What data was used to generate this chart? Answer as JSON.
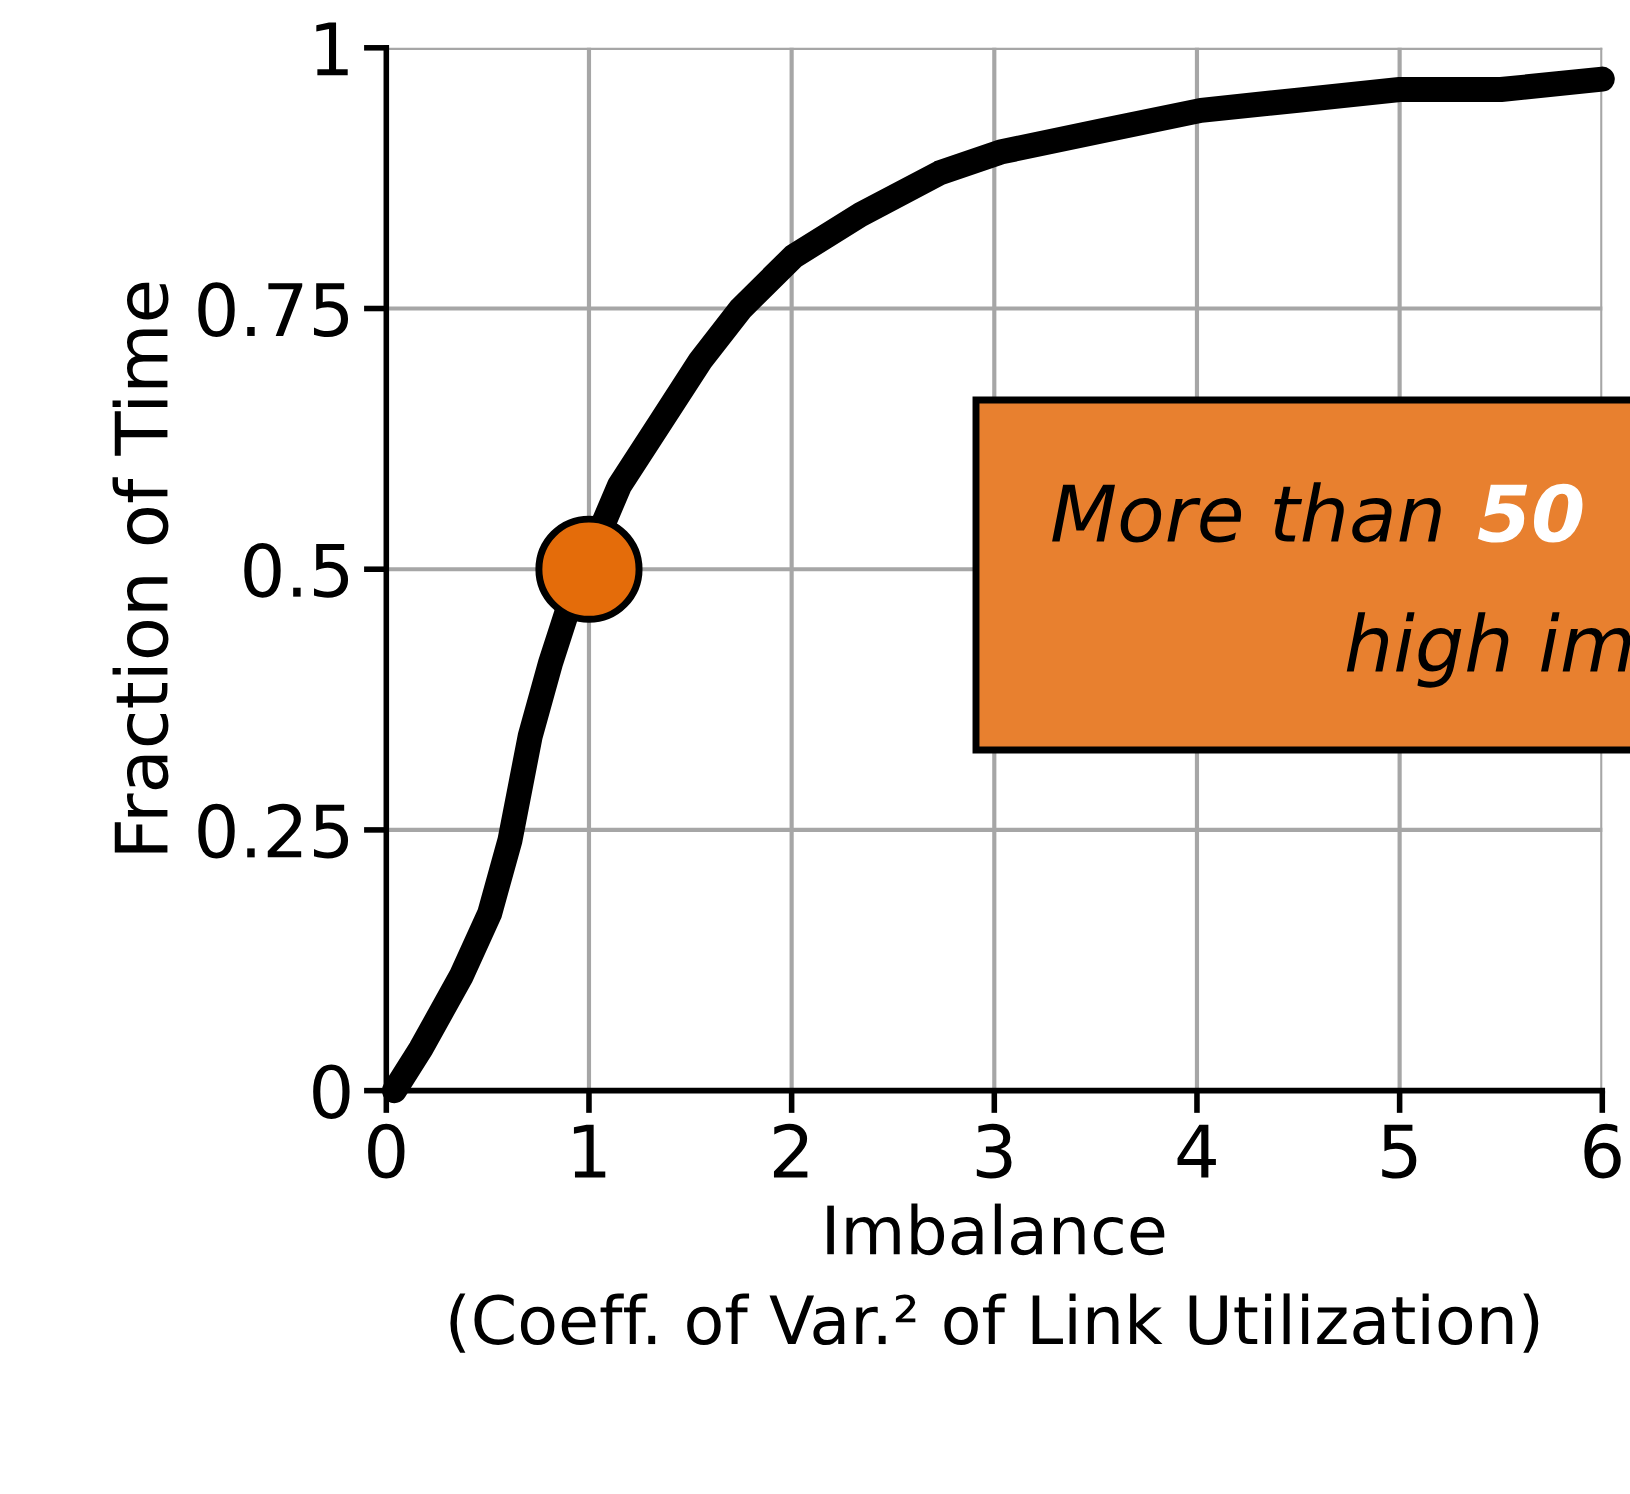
{
  "chart_data": {
    "type": "line",
    "xlabel": "Imbalance\n(Coeff. of Var.² of Link Utilization)",
    "ylabel": "Fraction of Time",
    "xlim": [
      0,
      6
    ],
    "ylim": [
      0,
      1
    ],
    "xticks": [
      0,
      1,
      2,
      3,
      4,
      5,
      6
    ],
    "yticks": [
      0,
      0.25,
      0.5,
      0.75,
      1
    ],
    "grid": true,
    "series": [
      {
        "color": "#000000",
        "x": [
          0.04,
          0.17,
          0.37,
          0.51,
          0.61,
          0.71,
          0.81,
          0.91,
          1.15,
          1.35,
          1.55,
          1.75,
          2.01,
          2.34,
          2.73,
          3.03,
          3.52,
          4.02,
          4.51,
          5.0,
          5.5,
          6.0
        ],
        "values": [
          0,
          0.04,
          0.11,
          0.17,
          0.24,
          0.34,
          0.41,
          0.47,
          0.58,
          0.64,
          0.7,
          0.75,
          0.8,
          0.84,
          0.88,
          0.9,
          0.92,
          0.94,
          0.95,
          0.96,
          0.96,
          0.97
        ]
      },
      {
        "type": "scatter",
        "color": "#e46c0a",
        "x": [
          1
        ],
        "values": [
          0.5
        ],
        "marker": "circle"
      }
    ],
    "annotations": [
      "More than ",
      "50",
      "high im"
    ]
  }
}
